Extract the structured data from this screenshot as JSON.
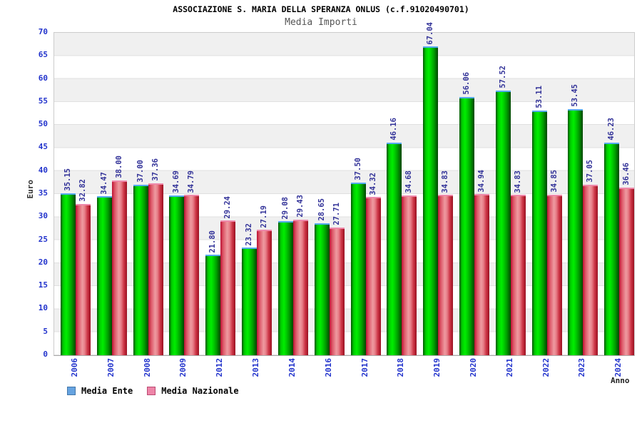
{
  "chart_data": {
    "type": "bar",
    "title": "ASSOCIAZIONE S. MARIA DELLA SPERANZA ONLUS (c.f.91020490701)",
    "subtitle": "Media Importi",
    "xlabel": "Anno",
    "ylabel": "Euro",
    "ylim": [
      0,
      70
    ],
    "yticks": [
      0,
      5,
      10,
      15,
      20,
      25,
      30,
      35,
      40,
      45,
      50,
      55,
      60,
      65,
      70
    ],
    "grid": "alternating-horizontal-bands",
    "legend_position": "bottom-left",
    "value_label_rotation": "vertical",
    "categories": [
      "2006",
      "2007",
      "2008",
      "2009",
      "2012",
      "2013",
      "2014",
      "2016",
      "2017",
      "2018",
      "2019",
      "2020",
      "2021",
      "2022",
      "2023",
      "2024"
    ],
    "series": [
      {
        "name": "Media Ente",
        "values": [
          35.15,
          34.47,
          37.0,
          34.69,
          21.8,
          23.32,
          29.08,
          28.65,
          37.5,
          46.16,
          67.04,
          56.06,
          57.52,
          53.11,
          53.45,
          46.23
        ],
        "bar_color": "#00cc00",
        "bar_cap_color": "#55aaee",
        "legend_fill": "#66a3e0",
        "legend_border": "#4477aa"
      },
      {
        "name": "Media Nazionale",
        "values": [
          32.82,
          38.0,
          37.36,
          34.79,
          29.24,
          27.19,
          29.43,
          27.71,
          34.32,
          34.68,
          34.83,
          34.94,
          34.83,
          34.85,
          37.05,
          36.46
        ],
        "bar_color": "#dd2233",
        "bar_cap_color": "#ee88aa",
        "legend_fill": "#ee85a8",
        "legend_border": "#bb4a72"
      }
    ]
  },
  "colors": {
    "background": "#ffffff",
    "title": "#000000",
    "subtitle": "#555555",
    "axis_tick_label": "#2233cc",
    "value_label": "#333399",
    "band_gray": "#f0f0f0",
    "band_white": "#ffffff",
    "plot_border": "#cccccc",
    "axis_title": "#333333"
  }
}
